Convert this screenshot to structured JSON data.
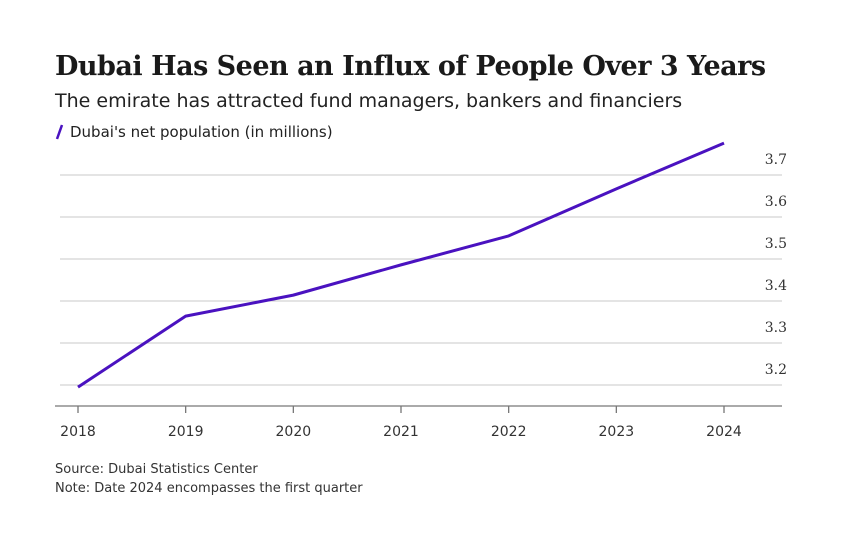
{
  "chart_data": {
    "type": "line",
    "title": "Dubai Has Seen an Influx of People Over 3 Years",
    "subtitle": "The emirate has attracted fund managers, bankers and financiers",
    "source": "Source: Dubai Statistics Center",
    "note": "Note: Date 2024 encompasses the first quarter",
    "categories": [
      "2018",
      "2019",
      "2020",
      "2021",
      "2022",
      "2023",
      "2024"
    ],
    "series": [
      {
        "name": "Dubai's net population (in millions)",
        "color": "#4a12c0",
        "values": [
          3.195,
          3.364,
          3.414,
          3.486,
          3.555,
          3.667,
          3.776
        ]
      }
    ],
    "ylim": [
      3.15,
      3.8
    ],
    "yticks": [
      3.2,
      3.3,
      3.4,
      3.5,
      3.6,
      3.7
    ],
    "grid": true
  }
}
